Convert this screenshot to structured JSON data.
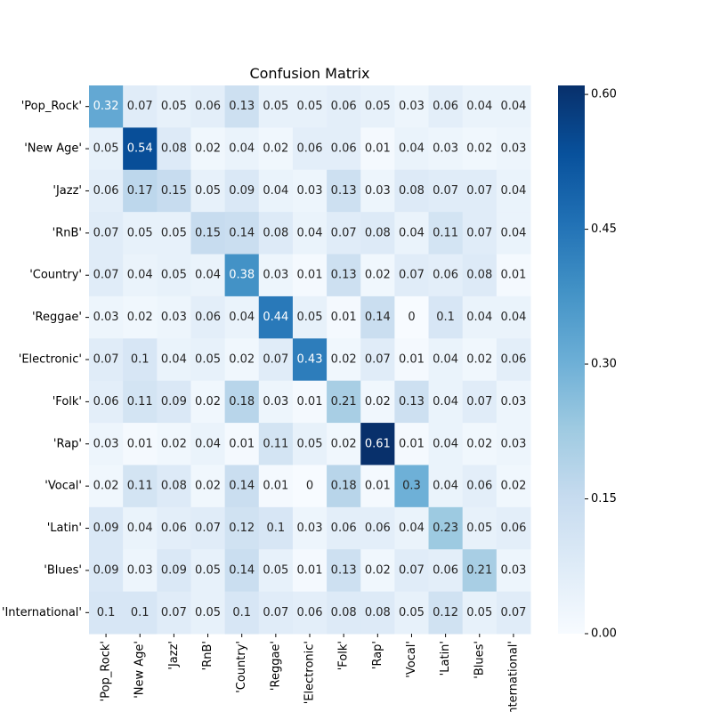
{
  "chart_data": {
    "type": "heatmap",
    "title": "Confusion Matrix",
    "xlabel": "",
    "ylabel": "",
    "row_labels": [
      "'Pop_Rock'",
      "'New Age'",
      "'Jazz'",
      "'RnB'",
      "'Country'",
      "'Reggae'",
      "'Electronic'",
      "'Folk'",
      "'Rap'",
      "'Vocal'",
      "'Latin'",
      "'Blues'",
      "'International'"
    ],
    "col_labels": [
      "'Pop_Rock'",
      "'New Age'",
      "'Jazz'",
      "'RnB'",
      "'Country'",
      "'Reggae'",
      "'Electronic'",
      "'Folk'",
      "'Rap'",
      "'Vocal'",
      "'Latin'",
      "'Blues'",
      "'International'"
    ],
    "values": [
      [
        0.32,
        0.07,
        0.05,
        0.06,
        0.13,
        0.05,
        0.05,
        0.06,
        0.05,
        0.03,
        0.06,
        0.04,
        0.04
      ],
      [
        0.05,
        0.54,
        0.08,
        0.02,
        0.04,
        0.02,
        0.06,
        0.06,
        0.01,
        0.04,
        0.03,
        0.02,
        0.03
      ],
      [
        0.06,
        0.17,
        0.15,
        0.05,
        0.09,
        0.04,
        0.03,
        0.13,
        0.03,
        0.08,
        0.07,
        0.07,
        0.04
      ],
      [
        0.07,
        0.05,
        0.05,
        0.15,
        0.14,
        0.08,
        0.04,
        0.07,
        0.08,
        0.04,
        0.11,
        0.07,
        0.04
      ],
      [
        0.07,
        0.04,
        0.05,
        0.04,
        0.38,
        0.03,
        0.01,
        0.13,
        0.02,
        0.07,
        0.06,
        0.08,
        0.01
      ],
      [
        0.03,
        0.02,
        0.03,
        0.06,
        0.04,
        0.44,
        0.05,
        0.01,
        0.14,
        0,
        0.1,
        0.04,
        0.04
      ],
      [
        0.07,
        0.1,
        0.04,
        0.05,
        0.02,
        0.07,
        0.43,
        0.02,
        0.07,
        0.01,
        0.04,
        0.02,
        0.06
      ],
      [
        0.06,
        0.11,
        0.09,
        0.02,
        0.18,
        0.03,
        0.01,
        0.21,
        0.02,
        0.13,
        0.04,
        0.07,
        0.03
      ],
      [
        0.03,
        0.01,
        0.02,
        0.04,
        0.01,
        0.11,
        0.05,
        0.02,
        0.61,
        0.01,
        0.04,
        0.02,
        0.03
      ],
      [
        0.02,
        0.11,
        0.08,
        0.02,
        0.14,
        0.01,
        0,
        0.18,
        0.01,
        0.3,
        0.04,
        0.06,
        0.02
      ],
      [
        0.09,
        0.04,
        0.06,
        0.07,
        0.12,
        0.1,
        0.03,
        0.06,
        0.06,
        0.04,
        0.23,
        0.05,
        0.06
      ],
      [
        0.09,
        0.03,
        0.09,
        0.05,
        0.14,
        0.05,
        0.01,
        0.13,
        0.02,
        0.07,
        0.06,
        0.21,
        0.03
      ],
      [
        0.1,
        0.1,
        0.07,
        0.05,
        0.1,
        0.07,
        0.06,
        0.08,
        0.08,
        0.05,
        0.12,
        0.05,
        0.07
      ]
    ],
    "colorbar": {
      "range": [
        0.0,
        0.61
      ],
      "ticks": [
        0.0,
        0.15,
        0.3,
        0.45,
        0.6
      ],
      "tick_labels": [
        "0.00",
        "0.15",
        "0.30",
        "0.45",
        "0.60"
      ],
      "colormap": "Blues"
    },
    "colormap_stops": [
      "#f7fbff",
      "#deebf7",
      "#c6dbef",
      "#9ecae1",
      "#6baed6",
      "#4292c6",
      "#2171b5",
      "#08519c",
      "#08306b"
    ],
    "text_colors": {
      "dark": "#262626",
      "light": "#ffffff"
    },
    "legend": "right"
  }
}
